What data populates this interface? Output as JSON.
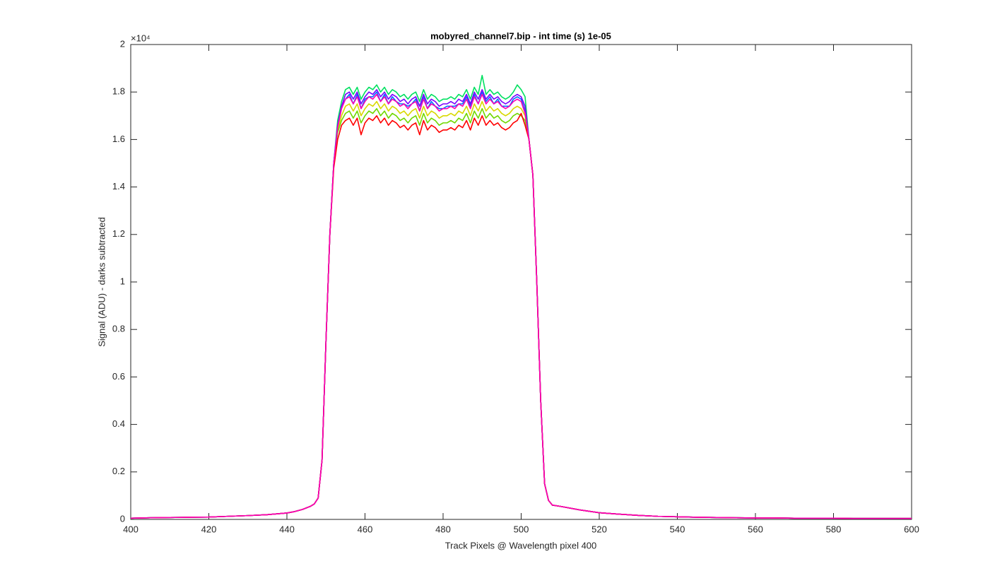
{
  "chart_data": {
    "type": "line",
    "title": "mobyred_channel7.bip - int time (s) 1e-05",
    "xlabel": "Track Pixels @ Wavelength pixel 400",
    "ylabel": "Signal (ADU) - darks subtracted",
    "y_exponent": "×10⁴",
    "xlim": [
      400,
      600
    ],
    "ylim": [
      0,
      2
    ],
    "xticks": [
      400,
      420,
      440,
      460,
      480,
      500,
      520,
      540,
      560,
      580,
      600
    ],
    "yticks": [
      0,
      0.2,
      0.4,
      0.6,
      0.8,
      1,
      1.2,
      1.4,
      1.6,
      1.8,
      2
    ],
    "x": [
      400,
      405,
      410,
      415,
      420,
      425,
      430,
      435,
      440,
      442,
      444,
      446,
      447,
      448,
      449,
      450,
      451,
      452,
      453,
      454,
      455,
      456,
      457,
      458,
      459,
      460,
      461,
      462,
      463,
      464,
      465,
      466,
      467,
      468,
      469,
      470,
      471,
      472,
      473,
      474,
      475,
      476,
      477,
      478,
      479,
      480,
      481,
      482,
      483,
      484,
      485,
      486,
      487,
      488,
      489,
      490,
      491,
      492,
      493,
      494,
      495,
      496,
      497,
      498,
      499,
      500,
      501,
      502,
      503,
      504,
      505,
      506,
      507,
      508,
      510,
      515,
      520,
      525,
      530,
      535,
      540,
      545,
      550,
      555,
      560,
      565,
      570,
      575,
      580,
      585,
      590,
      595,
      600
    ],
    "series": [
      {
        "color": "#00e060",
        "values": [
          0.005,
          0.007,
          0.008,
          0.009,
          0.01,
          0.013,
          0.016,
          0.02,
          0.027,
          0.033,
          0.042,
          0.055,
          0.065,
          0.09,
          0.25,
          0.75,
          1.2,
          1.5,
          1.68,
          1.76,
          1.81,
          1.82,
          1.79,
          1.82,
          1.77,
          1.8,
          1.82,
          1.81,
          1.83,
          1.8,
          1.82,
          1.79,
          1.81,
          1.8,
          1.78,
          1.79,
          1.77,
          1.79,
          1.8,
          1.76,
          1.81,
          1.77,
          1.79,
          1.78,
          1.76,
          1.77,
          1.77,
          1.78,
          1.77,
          1.79,
          1.78,
          1.81,
          1.77,
          1.82,
          1.79,
          1.87,
          1.79,
          1.81,
          1.79,
          1.8,
          1.78,
          1.77,
          1.78,
          1.8,
          1.83,
          1.81,
          1.78,
          1.6,
          1.45,
          1.0,
          0.5,
          0.15,
          0.08,
          0.06,
          0.055,
          0.04,
          0.028,
          0.022,
          0.017,
          0.013,
          0.011,
          0.009,
          0.008,
          0.007,
          0.006,
          0.006,
          0.005,
          0.005,
          0.005,
          0.004,
          0.004,
          0.004,
          0.004
        ]
      },
      {
        "color": "#d8d800",
        "values": [
          0.005,
          0.007,
          0.008,
          0.009,
          0.01,
          0.013,
          0.016,
          0.02,
          0.027,
          0.033,
          0.042,
          0.055,
          0.065,
          0.09,
          0.25,
          0.75,
          1.2,
          1.5,
          1.64,
          1.7,
          1.74,
          1.75,
          1.72,
          1.75,
          1.7,
          1.73,
          1.75,
          1.74,
          1.76,
          1.73,
          1.75,
          1.72,
          1.74,
          1.73,
          1.71,
          1.72,
          1.7,
          1.72,
          1.73,
          1.69,
          1.74,
          1.7,
          1.72,
          1.71,
          1.69,
          1.7,
          1.7,
          1.71,
          1.7,
          1.72,
          1.71,
          1.74,
          1.7,
          1.75,
          1.72,
          1.76,
          1.72,
          1.74,
          1.72,
          1.73,
          1.71,
          1.7,
          1.71,
          1.73,
          1.74,
          1.73,
          1.7,
          1.6,
          1.45,
          1.0,
          0.5,
          0.15,
          0.08,
          0.06,
          0.055,
          0.04,
          0.028,
          0.022,
          0.017,
          0.013,
          0.011,
          0.009,
          0.008,
          0.007,
          0.006,
          0.006,
          0.005,
          0.005,
          0.005,
          0.004,
          0.004,
          0.004,
          0.004
        ]
      },
      {
        "color": "#70d800",
        "values": [
          0.005,
          0.007,
          0.008,
          0.009,
          0.01,
          0.013,
          0.016,
          0.02,
          0.027,
          0.033,
          0.042,
          0.055,
          0.065,
          0.09,
          0.25,
          0.75,
          1.2,
          1.5,
          1.63,
          1.68,
          1.71,
          1.72,
          1.69,
          1.72,
          1.67,
          1.7,
          1.72,
          1.71,
          1.73,
          1.7,
          1.72,
          1.69,
          1.71,
          1.7,
          1.68,
          1.69,
          1.67,
          1.69,
          1.7,
          1.66,
          1.71,
          1.67,
          1.69,
          1.68,
          1.66,
          1.67,
          1.67,
          1.68,
          1.67,
          1.69,
          1.68,
          1.71,
          1.67,
          1.72,
          1.69,
          1.73,
          1.69,
          1.71,
          1.69,
          1.7,
          1.68,
          1.67,
          1.68,
          1.7,
          1.71,
          1.7,
          1.68,
          1.6,
          1.45,
          1.0,
          0.5,
          0.15,
          0.08,
          0.06,
          0.055,
          0.04,
          0.028,
          0.022,
          0.017,
          0.013,
          0.011,
          0.009,
          0.008,
          0.007,
          0.006,
          0.006,
          0.005,
          0.005,
          0.005,
          0.004,
          0.004,
          0.004,
          0.004
        ]
      },
      {
        "color": "#0070ff",
        "values": [
          0.005,
          0.007,
          0.008,
          0.009,
          0.01,
          0.013,
          0.016,
          0.02,
          0.027,
          0.033,
          0.042,
          0.055,
          0.065,
          0.09,
          0.25,
          0.75,
          1.2,
          1.5,
          1.66,
          1.74,
          1.77,
          1.79,
          1.75,
          1.79,
          1.73,
          1.77,
          1.78,
          1.78,
          1.8,
          1.76,
          1.79,
          1.75,
          1.78,
          1.76,
          1.75,
          1.75,
          1.74,
          1.75,
          1.77,
          1.72,
          1.78,
          1.73,
          1.76,
          1.74,
          1.73,
          1.73,
          1.74,
          1.74,
          1.74,
          1.75,
          1.75,
          1.78,
          1.74,
          1.79,
          1.75,
          1.8,
          1.76,
          1.78,
          1.75,
          1.77,
          1.74,
          1.74,
          1.74,
          1.77,
          1.78,
          1.77,
          1.72,
          1.6,
          1.45,
          1.0,
          0.5,
          0.15,
          0.08,
          0.06,
          0.055,
          0.04,
          0.028,
          0.022,
          0.017,
          0.013,
          0.011,
          0.009,
          0.008,
          0.007,
          0.006,
          0.006,
          0.005,
          0.005,
          0.005,
          0.004,
          0.004,
          0.004,
          0.004
        ]
      },
      {
        "color": "#7a00ff",
        "values": [
          0.005,
          0.007,
          0.008,
          0.009,
          0.01,
          0.013,
          0.016,
          0.02,
          0.027,
          0.033,
          0.042,
          0.055,
          0.065,
          0.09,
          0.25,
          0.75,
          1.2,
          1.5,
          1.66,
          1.74,
          1.79,
          1.8,
          1.77,
          1.8,
          1.75,
          1.78,
          1.8,
          1.79,
          1.81,
          1.78,
          1.8,
          1.77,
          1.79,
          1.78,
          1.76,
          1.77,
          1.75,
          1.77,
          1.78,
          1.74,
          1.79,
          1.75,
          1.77,
          1.76,
          1.74,
          1.75,
          1.75,
          1.76,
          1.75,
          1.77,
          1.76,
          1.79,
          1.75,
          1.8,
          1.77,
          1.81,
          1.77,
          1.79,
          1.77,
          1.78,
          1.76,
          1.75,
          1.76,
          1.78,
          1.79,
          1.78,
          1.74,
          1.6,
          1.45,
          1.0,
          0.5,
          0.15,
          0.08,
          0.06,
          0.055,
          0.04,
          0.028,
          0.022,
          0.017,
          0.013,
          0.011,
          0.009,
          0.008,
          0.007,
          0.006,
          0.006,
          0.005,
          0.005,
          0.005,
          0.004,
          0.004,
          0.004,
          0.004
        ]
      },
      {
        "color": "#ff0000",
        "values": [
          0.005,
          0.007,
          0.008,
          0.009,
          0.01,
          0.013,
          0.016,
          0.02,
          0.027,
          0.033,
          0.042,
          0.055,
          0.065,
          0.09,
          0.25,
          0.75,
          1.2,
          1.48,
          1.6,
          1.66,
          1.68,
          1.69,
          1.66,
          1.69,
          1.62,
          1.67,
          1.69,
          1.68,
          1.7,
          1.67,
          1.69,
          1.66,
          1.68,
          1.67,
          1.65,
          1.66,
          1.64,
          1.66,
          1.67,
          1.62,
          1.68,
          1.64,
          1.66,
          1.65,
          1.63,
          1.64,
          1.64,
          1.65,
          1.64,
          1.66,
          1.65,
          1.68,
          1.64,
          1.69,
          1.66,
          1.7,
          1.66,
          1.68,
          1.66,
          1.67,
          1.65,
          1.64,
          1.65,
          1.67,
          1.68,
          1.71,
          1.66,
          1.6,
          1.45,
          1.0,
          0.5,
          0.15,
          0.08,
          0.06,
          0.055,
          0.04,
          0.028,
          0.022,
          0.017,
          0.013,
          0.011,
          0.009,
          0.008,
          0.007,
          0.006,
          0.006,
          0.005,
          0.005,
          0.005,
          0.004,
          0.004,
          0.004,
          0.004
        ]
      },
      {
        "color": "#ff00b4",
        "values": [
          0.005,
          0.007,
          0.008,
          0.009,
          0.01,
          0.013,
          0.016,
          0.02,
          0.027,
          0.033,
          0.042,
          0.055,
          0.065,
          0.09,
          0.25,
          0.75,
          1.2,
          1.5,
          1.65,
          1.73,
          1.77,
          1.78,
          1.75,
          1.78,
          1.73,
          1.76,
          1.78,
          1.77,
          1.79,
          1.76,
          1.78,
          1.75,
          1.77,
          1.76,
          1.74,
          1.75,
          1.73,
          1.75,
          1.76,
          1.72,
          1.77,
          1.73,
          1.75,
          1.74,
          1.72,
          1.73,
          1.73,
          1.74,
          1.73,
          1.75,
          1.74,
          1.77,
          1.73,
          1.78,
          1.75,
          1.79,
          1.75,
          1.77,
          1.75,
          1.76,
          1.74,
          1.73,
          1.74,
          1.76,
          1.77,
          1.76,
          1.71,
          1.6,
          1.45,
          1.0,
          0.5,
          0.15,
          0.08,
          0.06,
          0.055,
          0.04,
          0.028,
          0.022,
          0.017,
          0.013,
          0.011,
          0.009,
          0.008,
          0.007,
          0.006,
          0.006,
          0.005,
          0.005,
          0.005,
          0.004,
          0.004,
          0.004,
          0.004
        ]
      }
    ]
  }
}
